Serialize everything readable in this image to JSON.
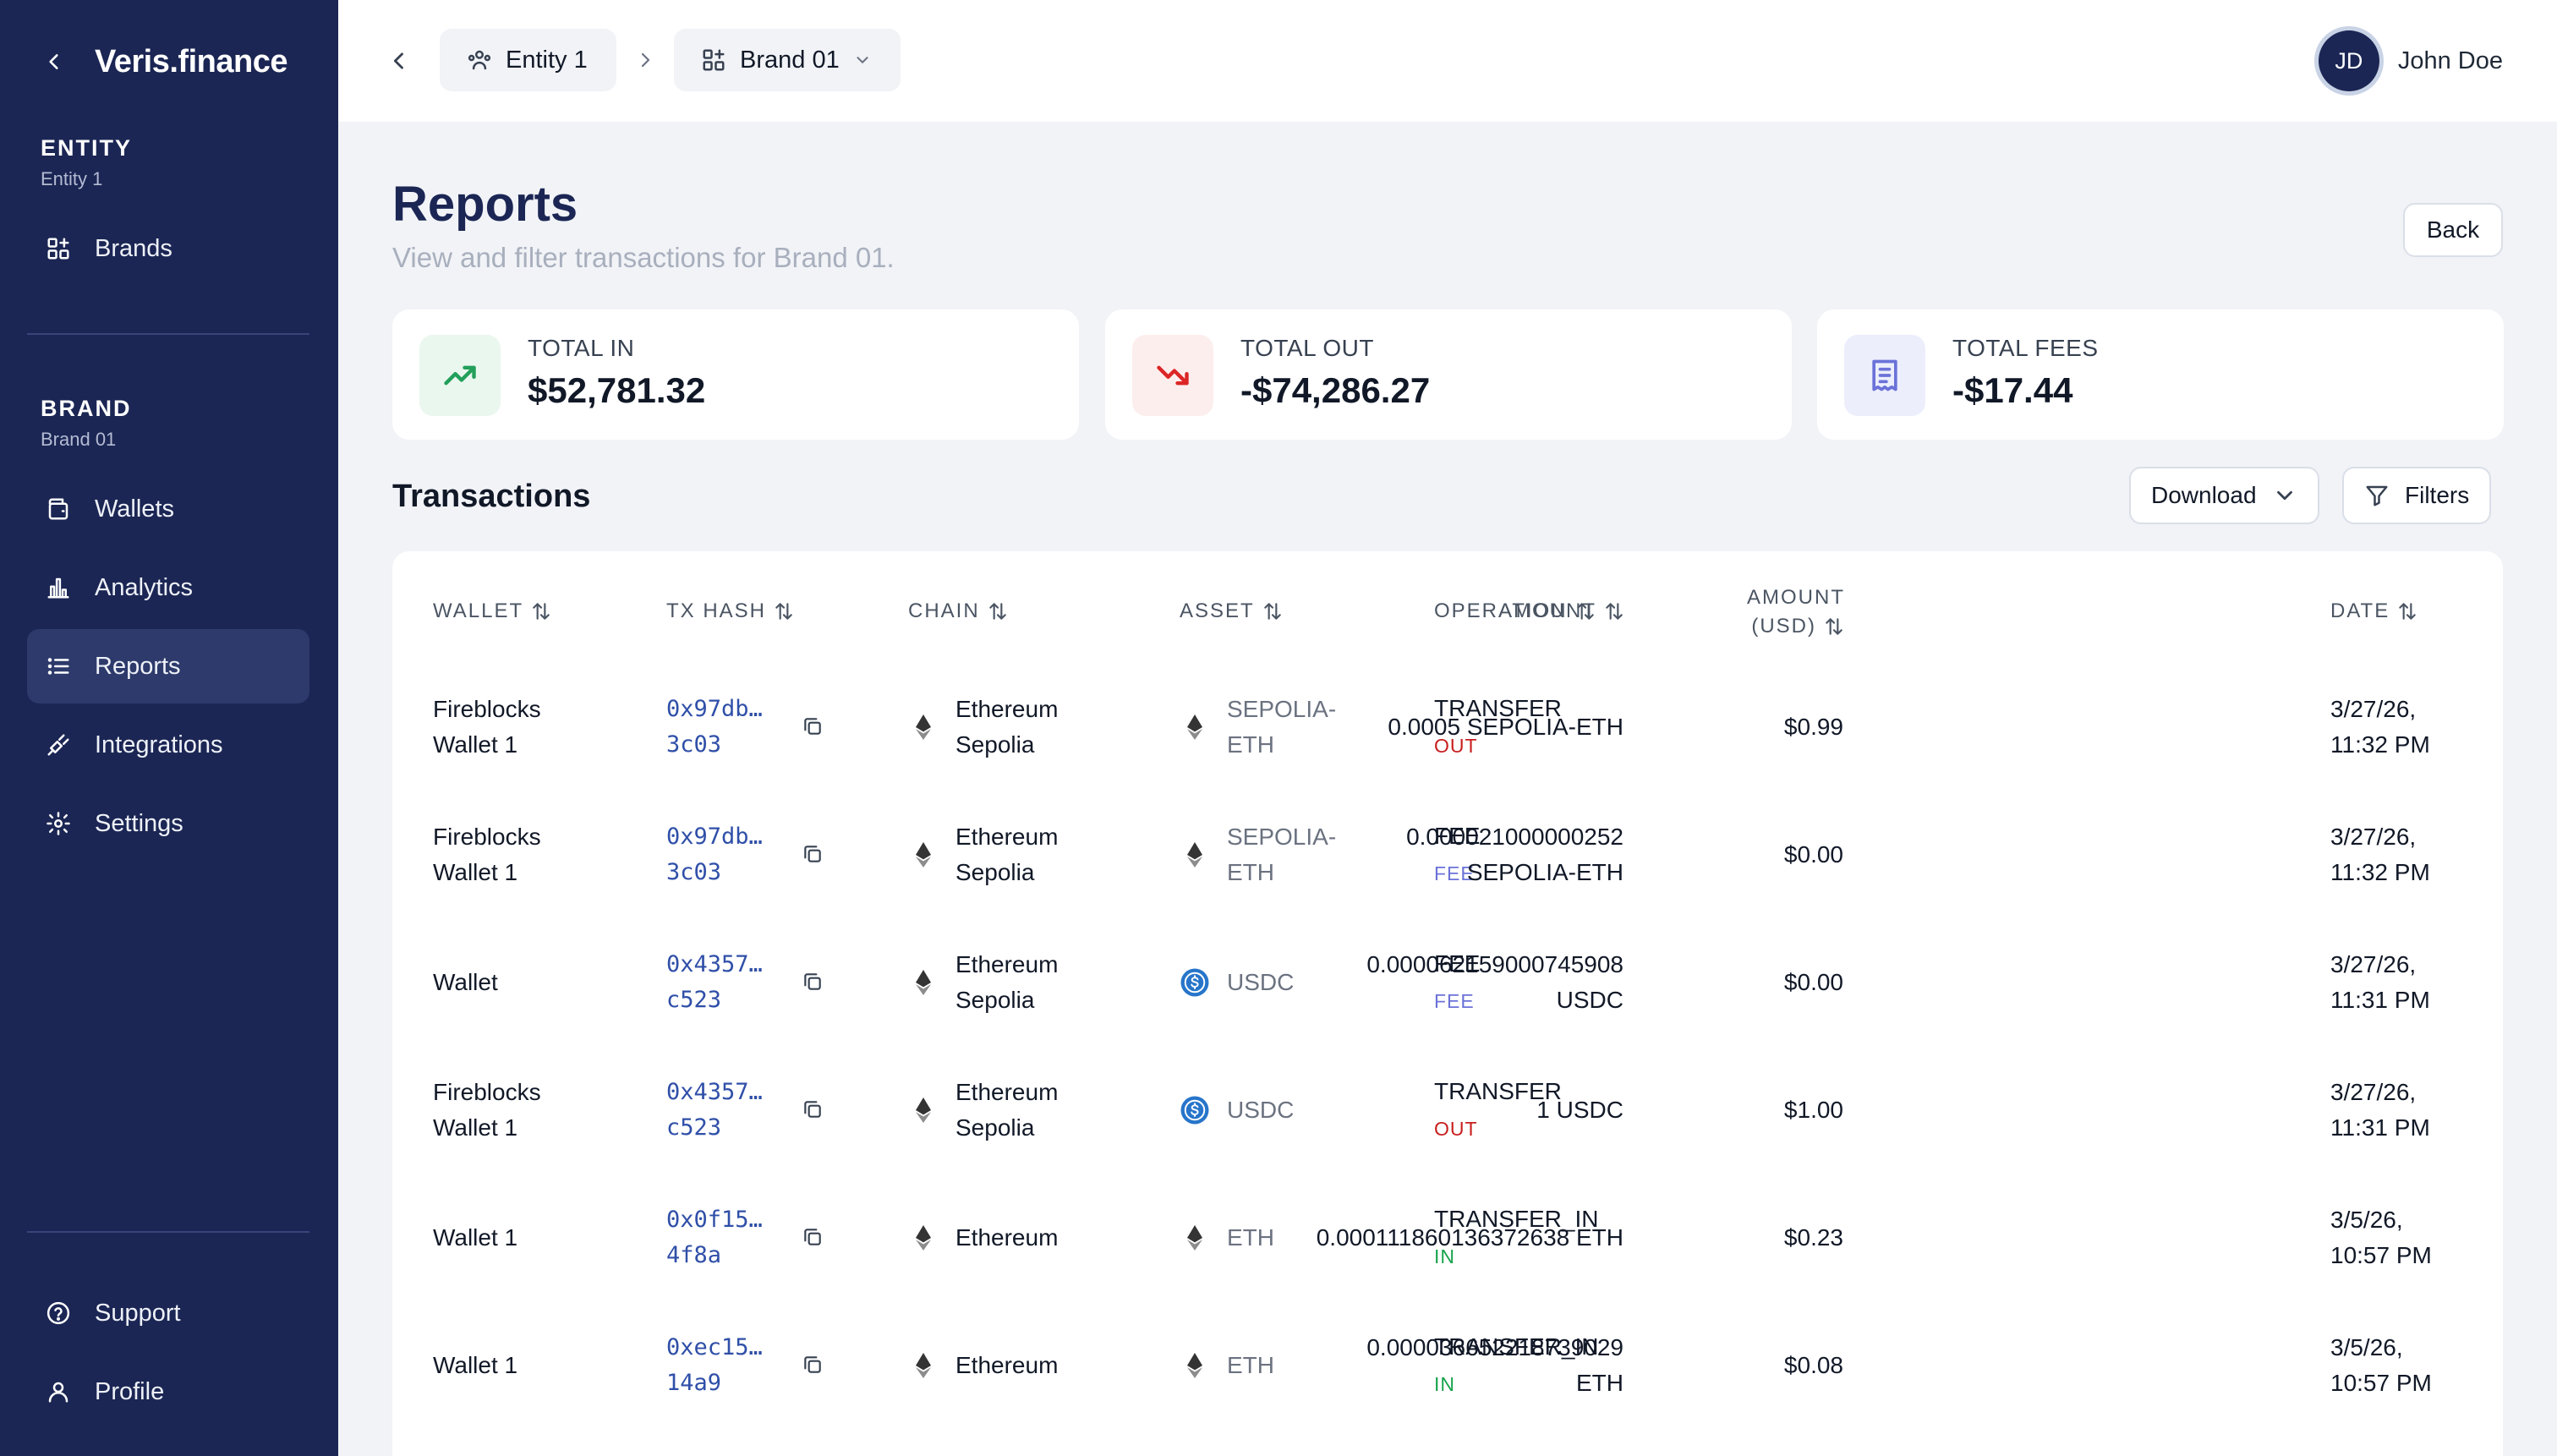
{
  "brand": {
    "logo": "Veris.finance",
    "accent": "#1b2654"
  },
  "sidebar": {
    "entity_title": "ENTITY",
    "entity_name": "Entity 1",
    "brands_label": "Brands",
    "brand_title": "BRAND",
    "brand_name": "Brand 01",
    "items": [
      {
        "label": "Wallets",
        "icon": "wallet-icon"
      },
      {
        "label": "Analytics",
        "icon": "bar-chart-icon"
      },
      {
        "label": "Reports",
        "icon": "list-icon",
        "active": true
      },
      {
        "label": "Integrations",
        "icon": "plug-icon"
      },
      {
        "label": "Settings",
        "icon": "gear-icon"
      }
    ],
    "bottom": [
      {
        "label": "Support",
        "icon": "help-circle-icon"
      },
      {
        "label": "Profile",
        "icon": "user-icon"
      }
    ]
  },
  "header": {
    "breadcrumb": [
      {
        "label": "Entity 1",
        "icon": "users-icon"
      },
      {
        "label": "Brand 01",
        "icon": "brand-grid-icon"
      }
    ],
    "user": {
      "initials": "JD",
      "name": "John Doe"
    }
  },
  "page": {
    "title": "Reports",
    "subtitle": "View and filter transactions for Brand 01.",
    "back_label": "Back"
  },
  "stats": [
    {
      "label": "TOTAL IN",
      "value": "$52,781.32",
      "icon": "trending-up-icon",
      "color": "#22a05a",
      "bg": "#eaf7ef"
    },
    {
      "label": "TOTAL OUT",
      "value": "-$74,286.27",
      "icon": "trending-down-icon",
      "color": "#dc2626",
      "bg": "#fdeeee"
    },
    {
      "label": "TOTAL FEES",
      "value": "-$17.44",
      "icon": "receipt-icon",
      "color": "#6b72d8",
      "bg": "#eceefc"
    }
  ],
  "transactions": {
    "title": "Transactions",
    "download_label": "Download",
    "filters_label": "Filters",
    "columns": {
      "wallet": "WALLET",
      "tx_hash": "TX HASH",
      "chain": "CHAIN",
      "asset": "ASSET",
      "operation": "OPERATION",
      "amount": "AMOUNT",
      "amount_usd_1": "AMOUNT",
      "amount_usd_2": "(USD)",
      "date": "DATE"
    },
    "rows": [
      {
        "wallet_1": "Fireblocks",
        "wallet_2": "Wallet 1",
        "hash_1": "0x97db…",
        "hash_2": "3c03",
        "chain_1": "Ethereum",
        "chain_2": "Sepolia",
        "asset_icon": "eth-icon",
        "asset_1": "SEPOLIA-",
        "asset_2": "ETH",
        "op": "TRANSFER",
        "op_sub": "OUT",
        "op_color": "#c81e1e",
        "amount_1": "0.0005 SEPOLIA-ETH",
        "amount_2": "",
        "usd": "$0.99",
        "date_1": "3/27/26,",
        "date_2": "11:32 PM"
      },
      {
        "wallet_1": "Fireblocks",
        "wallet_2": "Wallet 1",
        "hash_1": "0x97db…",
        "hash_2": "3c03",
        "chain_1": "Ethereum",
        "chain_2": "Sepolia",
        "asset_icon": "eth-icon",
        "asset_1": "SEPOLIA-",
        "asset_2": "ETH",
        "op": "FEE",
        "op_sub": "FEE",
        "op_color": "#6b72d8",
        "amount_1": "0.000021000000252",
        "amount_2": "SEPOLIA-ETH",
        "usd": "$0.00",
        "date_1": "3/27/26,",
        "date_2": "11:32 PM"
      },
      {
        "wallet_1": "Wallet",
        "wallet_2": "",
        "hash_1": "0x4357…",
        "hash_2": "c523",
        "chain_1": "Ethereum",
        "chain_2": "Sepolia",
        "asset_icon": "usdc-icon",
        "asset_1": "USDC",
        "asset_2": "",
        "op": "FEE",
        "op_sub": "FEE",
        "op_color": "#6b72d8",
        "amount_1": "0.000062159000745908",
        "amount_2": "USDC",
        "usd": "$0.00",
        "date_1": "3/27/26,",
        "date_2": "11:31 PM"
      },
      {
        "wallet_1": "Fireblocks",
        "wallet_2": "Wallet 1",
        "hash_1": "0x4357…",
        "hash_2": "c523",
        "chain_1": "Ethereum",
        "chain_2": "Sepolia",
        "asset_icon": "usdc-icon",
        "asset_1": "USDC",
        "asset_2": "",
        "op": "TRANSFER",
        "op_sub": "OUT",
        "op_color": "#c81e1e",
        "amount_1": "1 USDC",
        "amount_2": "",
        "usd": "$1.00",
        "date_1": "3/27/26,",
        "date_2": "11:31 PM"
      },
      {
        "wallet_1": "Wallet 1",
        "wallet_2": "",
        "hash_1": "0x0f15…",
        "hash_2": "4f8a",
        "chain_1": "Ethereum",
        "chain_2": "",
        "asset_icon": "eth-icon",
        "asset_1": "ETH",
        "asset_2": "",
        "op": "TRANSFER_IN",
        "op_sub": "IN",
        "op_color": "#16a34a",
        "amount_1": "0.000111860136372638 ETH",
        "amount_2": "",
        "usd": "$0.23",
        "date_1": "3/5/26,",
        "date_2": "10:57 PM"
      },
      {
        "wallet_1": "Wallet 1",
        "wallet_2": "",
        "hash_1": "0xec15…",
        "hash_2": "14a9",
        "chain_1": "Ethereum",
        "chain_2": "",
        "asset_icon": "eth-icon",
        "asset_1": "ETH",
        "asset_2": "",
        "op": "TRANSFER_IN",
        "op_sub": "IN",
        "op_color": "#16a34a",
        "amount_1": "0.000036652218739029",
        "amount_2": "ETH",
        "usd": "$0.08",
        "date_1": "3/5/26,",
        "date_2": "10:57 PM"
      }
    ]
  }
}
